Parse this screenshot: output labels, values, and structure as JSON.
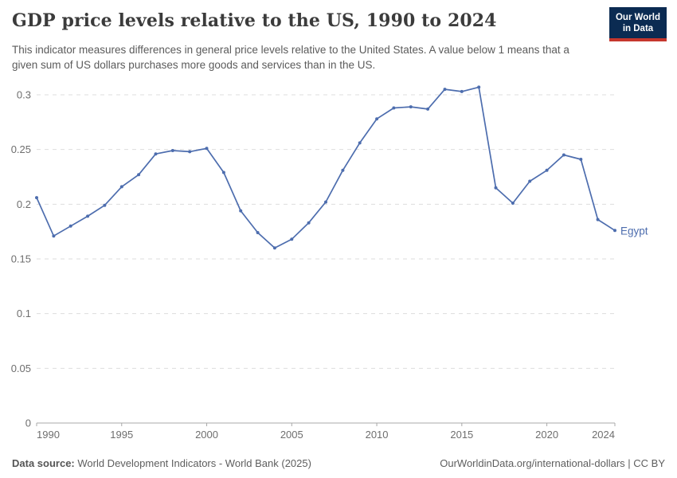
{
  "header": {
    "title": "GDP price levels relative to the US, 1990 to 2024",
    "subtitle": "This indicator measures differences in general price levels relative to the United States. A value below 1 means that a given sum of US dollars purchases more goods and services than in the US.",
    "logo": {
      "line1": "Our World",
      "line2": "in Data",
      "bg_color": "#0b2b52",
      "stripe_color": "#c5372d"
    }
  },
  "chart_data": {
    "type": "line",
    "title": "GDP price levels relative to the US, 1990 to 2024",
    "xlabel": "",
    "ylabel": "",
    "xlim": [
      1990,
      2024
    ],
    "ylim": [
      0,
      0.3
    ],
    "grid": "horizontal-dashed",
    "legend_position": "end-of-line-label",
    "x_ticks": [
      1990,
      1995,
      2000,
      2005,
      2010,
      2015,
      2020,
      2024
    ],
    "y_ticks": [
      0,
      0.05,
      0.1,
      0.15,
      0.2,
      0.25,
      0.3
    ],
    "y_tick_labels": [
      "0",
      "0.05",
      "0.1",
      "0.15",
      "0.2",
      "0.25",
      "0.3"
    ],
    "x": [
      1990,
      1991,
      1992,
      1993,
      1994,
      1995,
      1996,
      1997,
      1998,
      1999,
      2000,
      2001,
      2002,
      2003,
      2004,
      2005,
      2006,
      2007,
      2008,
      2009,
      2010,
      2011,
      2012,
      2013,
      2014,
      2015,
      2016,
      2017,
      2018,
      2019,
      2020,
      2021,
      2022,
      2023,
      2024
    ],
    "series": [
      {
        "name": "Egypt",
        "color": "#4d6dae",
        "values": [
          0.206,
          0.171,
          0.18,
          0.189,
          0.199,
          0.216,
          0.227,
          0.246,
          0.249,
          0.248,
          0.251,
          0.229,
          0.194,
          0.174,
          0.16,
          0.168,
          0.183,
          0.202,
          0.231,
          0.256,
          0.278,
          0.288,
          0.289,
          0.287,
          0.305,
          0.303,
          0.307,
          0.215,
          0.201,
          0.221,
          0.231,
          0.245,
          0.241,
          0.186,
          0.176
        ]
      }
    ],
    "colors": {
      "gridline": "#dddddd",
      "axis": "#a8a8a8",
      "tick_text": "#6e6e6e"
    }
  },
  "footer": {
    "source_label": "Data source:",
    "source_text": " World Development Indicators - World Bank (2025)",
    "right_text": "OurWorldinData.org/international-dollars | CC BY"
  }
}
